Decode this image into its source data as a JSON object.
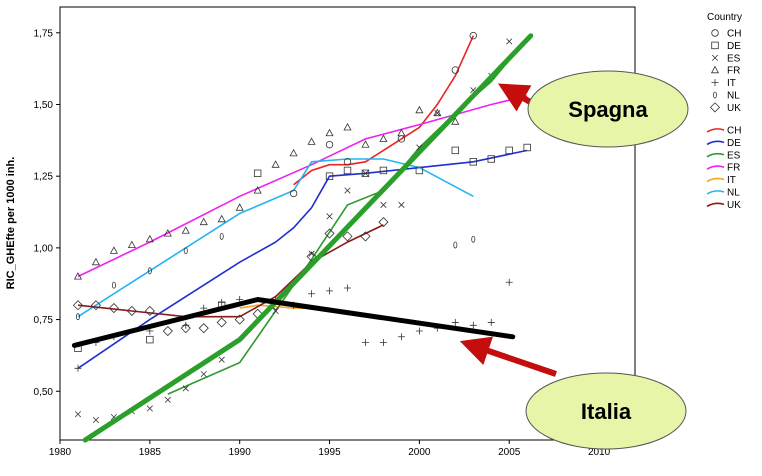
{
  "chart_data": {
    "type": "scatter",
    "xlabel": "",
    "ylabel": "RIC_GHEfte per 1000 inh.",
    "xlim": [
      1980,
      2012
    ],
    "ylim": [
      0.33,
      1.84
    ],
    "xticks": [
      1980,
      1985,
      1990,
      1995,
      2000,
      2005,
      2010
    ],
    "yticks": [
      0.5,
      0.75,
      1.0,
      1.25,
      1.5,
      1.75
    ],
    "ytick_labels": [
      "0,50",
      "0,75",
      "1,00",
      "1,25",
      "1,50",
      "1,75"
    ],
    "grid": false,
    "legend_title": "Country",
    "legend_position": "right",
    "legend_markers": [
      {
        "name": "CH",
        "marker": "circle"
      },
      {
        "name": "DE",
        "marker": "square"
      },
      {
        "name": "ES",
        "marker": "x"
      },
      {
        "name": "FR",
        "marker": "triangle"
      },
      {
        "name": "IT",
        "marker": "plus"
      },
      {
        "name": "NL",
        "marker": "zero"
      },
      {
        "name": "UK",
        "marker": "diamond"
      }
    ],
    "legend_lines": [
      {
        "name": "CH",
        "color": "#ee2222"
      },
      {
        "name": "DE",
        "color": "#1f2fd0"
      },
      {
        "name": "ES",
        "color": "#2e9a2e"
      },
      {
        "name": "FR",
        "color": "#ee22ee"
      },
      {
        "name": "IT",
        "color": "#f5a623"
      },
      {
        "name": "NL",
        "color": "#22b5f0"
      },
      {
        "name": "UK",
        "color": "#8b1a1a"
      }
    ],
    "points": [
      {
        "country": "CH",
        "marker": "circle",
        "data": [
          [
            1993,
            1.19
          ],
          [
            1995,
            1.36
          ],
          [
            1996,
            1.3
          ],
          [
            1999,
            1.38
          ],
          [
            2002,
            1.62
          ],
          [
            2003,
            1.74
          ]
        ]
      },
      {
        "country": "DE",
        "marker": "square",
        "data": [
          [
            1981,
            0.65
          ],
          [
            1985,
            0.68
          ],
          [
            1989,
            0.8
          ],
          [
            1991,
            1.26
          ],
          [
            1995,
            1.25
          ],
          [
            1996,
            1.27
          ],
          [
            1997,
            1.26
          ],
          [
            1998,
            1.27
          ],
          [
            2000,
            1.27
          ],
          [
            2002,
            1.34
          ],
          [
            2003,
            1.3
          ],
          [
            2004,
            1.31
          ],
          [
            2005,
            1.34
          ],
          [
            2006,
            1.35
          ]
        ]
      },
      {
        "country": "ES",
        "marker": "x",
        "data": [
          [
            1981,
            0.42
          ],
          [
            1982,
            0.4
          ],
          [
            1983,
            0.41
          ],
          [
            1984,
            0.43
          ],
          [
            1985,
            0.44
          ],
          [
            1986,
            0.47
          ],
          [
            1987,
            0.51
          ],
          [
            1988,
            0.56
          ],
          [
            1989,
            0.61
          ],
          [
            1992,
            0.78
          ],
          [
            1994,
            0.98
          ],
          [
            1995,
            1.11
          ],
          [
            1996,
            1.2
          ],
          [
            1997,
            1.26
          ],
          [
            1998,
            1.15
          ],
          [
            1999,
            1.15
          ],
          [
            2000,
            1.35
          ],
          [
            2001,
            1.47
          ],
          [
            2003,
            1.55
          ],
          [
            2004,
            1.6
          ],
          [
            2005,
            1.72
          ]
        ]
      },
      {
        "country": "FR",
        "marker": "triangle",
        "data": [
          [
            1981,
            0.9
          ],
          [
            1982,
            0.95
          ],
          [
            1983,
            0.99
          ],
          [
            1984,
            1.01
          ],
          [
            1985,
            1.03
          ],
          [
            1986,
            1.05
          ],
          [
            1987,
            1.06
          ],
          [
            1988,
            1.09
          ],
          [
            1989,
            1.1
          ],
          [
            1990,
            1.14
          ],
          [
            1991,
            1.2
          ],
          [
            1992,
            1.29
          ],
          [
            1993,
            1.33
          ],
          [
            1994,
            1.37
          ],
          [
            1995,
            1.4
          ],
          [
            1996,
            1.42
          ],
          [
            1997,
            1.36
          ],
          [
            1998,
            1.38
          ],
          [
            1999,
            1.4
          ],
          [
            2000,
            1.48
          ],
          [
            2001,
            1.47
          ],
          [
            2002,
            1.44
          ]
        ]
      },
      {
        "country": "IT",
        "marker": "plus",
        "data": [
          [
            1981,
            0.58
          ],
          [
            1982,
            0.67
          ],
          [
            1983,
            0.69
          ],
          [
            1985,
            0.71
          ],
          [
            1987,
            0.73
          ],
          [
            1988,
            0.79
          ],
          [
            1989,
            0.81
          ],
          [
            1990,
            0.82
          ],
          [
            1992,
            0.82
          ],
          [
            1993,
            0.8
          ],
          [
            1994,
            0.84
          ],
          [
            1995,
            0.85
          ],
          [
            1996,
            0.86
          ],
          [
            1997,
            0.67
          ],
          [
            1998,
            0.67
          ],
          [
            1999,
            0.69
          ],
          [
            2000,
            0.71
          ],
          [
            2001,
            0.72
          ],
          [
            2002,
            0.74
          ],
          [
            2003,
            0.73
          ],
          [
            2004,
            0.74
          ],
          [
            2005,
            0.88
          ]
        ]
      },
      {
        "country": "NL",
        "marker": "zero",
        "data": [
          [
            1981,
            0.76
          ],
          [
            1983,
            0.87
          ],
          [
            1985,
            0.92
          ],
          [
            1987,
            0.99
          ],
          [
            1989,
            1.04
          ],
          [
            2002,
            1.01
          ],
          [
            2003,
            1.03
          ]
        ]
      },
      {
        "country": "UK",
        "marker": "diamond",
        "data": [
          [
            1981,
            0.8
          ],
          [
            1982,
            0.8
          ],
          [
            1983,
            0.79
          ],
          [
            1984,
            0.78
          ],
          [
            1985,
            0.78
          ],
          [
            1986,
            0.71
          ],
          [
            1987,
            0.72
          ],
          [
            1988,
            0.72
          ],
          [
            1989,
            0.74
          ],
          [
            1990,
            0.75
          ],
          [
            1991,
            0.77
          ],
          [
            1992,
            0.8
          ],
          [
            1994,
            0.97
          ],
          [
            1995,
            1.05
          ],
          [
            1996,
            1.04
          ],
          [
            1997,
            1.04
          ],
          [
            1998,
            1.09
          ]
        ]
      }
    ],
    "trend_lines": [
      {
        "country": "CH",
        "color": "#ee2222",
        "data": [
          [
            1993,
            1.22
          ],
          [
            1994,
            1.27
          ],
          [
            1995,
            1.29
          ],
          [
            1996,
            1.29
          ],
          [
            1997,
            1.3
          ],
          [
            1998,
            1.34
          ],
          [
            1999,
            1.38
          ],
          [
            2000,
            1.42
          ],
          [
            2001,
            1.5
          ],
          [
            2002,
            1.6
          ],
          [
            2003,
            1.74
          ]
        ]
      },
      {
        "country": "DE",
        "color": "#1f2fd0",
        "data": [
          [
            1981,
            0.58
          ],
          [
            1985,
            0.75
          ],
          [
            1990,
            0.95
          ],
          [
            1992,
            1.02
          ],
          [
            1993,
            1.07
          ],
          [
            1994,
            1.14
          ],
          [
            1995,
            1.25
          ],
          [
            1997,
            1.26
          ],
          [
            2000,
            1.28
          ],
          [
            2003,
            1.3
          ],
          [
            2006,
            1.34
          ]
        ]
      },
      {
        "country": "ES",
        "color": "#2e9a2e",
        "data": [
          [
            1986,
            0.49
          ],
          [
            1990,
            0.6
          ],
          [
            1992,
            0.78
          ],
          [
            1994,
            0.96
          ],
          [
            1996,
            1.15
          ],
          [
            1998,
            1.2
          ],
          [
            2000,
            1.35
          ],
          [
            2002,
            1.47
          ],
          [
            2004,
            1.58
          ],
          [
            2006,
            1.73
          ]
        ]
      },
      {
        "country": "FR",
        "color": "#ee22ee",
        "data": [
          [
            1981,
            0.9
          ],
          [
            1985,
            1.02
          ],
          [
            1990,
            1.18
          ],
          [
            1994,
            1.29
          ],
          [
            1997,
            1.38
          ],
          [
            2000,
            1.43
          ],
          [
            2004,
            1.5
          ],
          [
            2006,
            1.53
          ]
        ]
      },
      {
        "country": "IT",
        "color": "#f5a623",
        "data": [
          [
            1990,
            0.79
          ],
          [
            1991,
            0.8
          ],
          [
            1993,
            0.79
          ],
          [
            1995,
            0.79
          ]
        ]
      },
      {
        "country": "NL",
        "color": "#22b5f0",
        "data": [
          [
            1981,
            0.76
          ],
          [
            1985,
            0.92
          ],
          [
            1990,
            1.12
          ],
          [
            1993,
            1.2
          ],
          [
            1994,
            1.3
          ],
          [
            1996,
            1.31
          ],
          [
            1998,
            1.31
          ],
          [
            2000,
            1.28
          ],
          [
            2003,
            1.18
          ]
        ]
      },
      {
        "country": "UK",
        "color": "#8b1a1a",
        "data": [
          [
            1981,
            0.8
          ],
          [
            1984,
            0.78
          ],
          [
            1987,
            0.76
          ],
          [
            1990,
            0.76
          ],
          [
            1992,
            0.83
          ],
          [
            1994,
            0.95
          ],
          [
            1996,
            1.02
          ],
          [
            1998,
            1.08
          ]
        ]
      }
    ],
    "overlay_lines": [
      {
        "name": "Spagna trend",
        "color": "#2aa02a",
        "data": [
          [
            1981.4,
            0.33
          ],
          [
            1990,
            0.68
          ],
          [
            2006.2,
            1.74
          ]
        ]
      },
      {
        "name": "Italia trend",
        "color": "#000000",
        "data": [
          [
            1980.8,
            0.66
          ],
          [
            1991,
            0.82
          ],
          [
            2005.2,
            0.69
          ]
        ]
      }
    ],
    "annotations": [
      {
        "label": "Spagna",
        "arrow_to": [
          2004,
          1.6
        ]
      },
      {
        "label": "Italia",
        "arrow_to": [
          2002,
          0.72
        ]
      }
    ]
  }
}
